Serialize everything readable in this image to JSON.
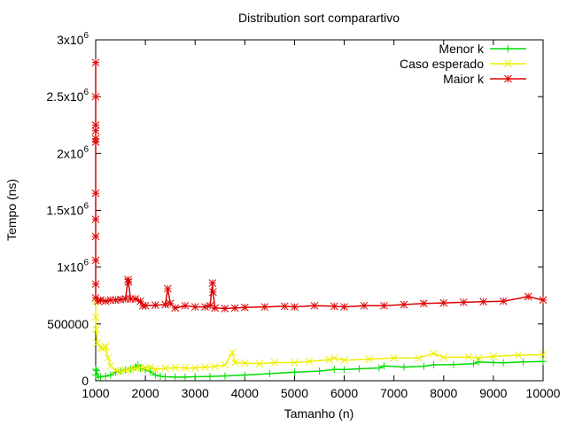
{
  "chart_data": {
    "type": "line",
    "title": "Distribution sort comparartivo",
    "xlabel": "Tamanho (n)",
    "ylabel": "Tempo (ns)",
    "xlim": [
      1000,
      10000
    ],
    "ylim": [
      0,
      3000000
    ],
    "grid": false,
    "legend_position": "top-right",
    "x_ticks": [
      {
        "value": 1000,
        "label": "1000"
      },
      {
        "value": 2000,
        "label": "2000"
      },
      {
        "value": 3000,
        "label": "3000"
      },
      {
        "value": 4000,
        "label": "4000"
      },
      {
        "value": 5000,
        "label": "5000"
      },
      {
        "value": 6000,
        "label": "6000"
      },
      {
        "value": 7000,
        "label": "7000"
      },
      {
        "value": 8000,
        "label": "8000"
      },
      {
        "value": 9000,
        "label": "9000"
      },
      {
        "value": 10000,
        "label": "10000"
      }
    ],
    "y_ticks": [
      {
        "value": 0,
        "base": "0",
        "exp": ""
      },
      {
        "value": 500000,
        "base": "500000",
        "exp": ""
      },
      {
        "value": 1000000,
        "base": "1x10",
        "exp": "6"
      },
      {
        "value": 1500000,
        "base": "1.5x10",
        "exp": "6"
      },
      {
        "value": 2000000,
        "base": "2x10",
        "exp": "6"
      },
      {
        "value": 2500000,
        "base": "2.5x10",
        "exp": "6"
      },
      {
        "value": 3000000,
        "base": "3x10",
        "exp": "6"
      }
    ],
    "series": [
      {
        "name": "Menor k",
        "color": "#00dd00",
        "marker": "plus",
        "points": [
          [
            1000,
            100000
          ],
          [
            1000,
            50000
          ],
          [
            1020,
            90000
          ],
          [
            1050,
            30000
          ],
          [
            1100,
            35000
          ],
          [
            1200,
            40000
          ],
          [
            1300,
            50000
          ],
          [
            1400,
            75000
          ],
          [
            1500,
            85000
          ],
          [
            1600,
            95000
          ],
          [
            1700,
            100000
          ],
          [
            1800,
            120000
          ],
          [
            1850,
            140000
          ],
          [
            1900,
            110000
          ],
          [
            2000,
            95000
          ],
          [
            2100,
            80000
          ],
          [
            2200,
            50000
          ],
          [
            2300,
            40000
          ],
          [
            2400,
            35000
          ],
          [
            2600,
            32000
          ],
          [
            2800,
            32000
          ],
          [
            3000,
            35000
          ],
          [
            3300,
            38000
          ],
          [
            3600,
            42000
          ],
          [
            4000,
            50000
          ],
          [
            4500,
            62000
          ],
          [
            5000,
            75000
          ],
          [
            5500,
            85000
          ],
          [
            5800,
            100000
          ],
          [
            6000,
            98000
          ],
          [
            6300,
            105000
          ],
          [
            6700,
            112000
          ],
          [
            6800,
            130000
          ],
          [
            7200,
            120000
          ],
          [
            7600,
            128000
          ],
          [
            7800,
            140000
          ],
          [
            8200,
            142000
          ],
          [
            8600,
            150000
          ],
          [
            8700,
            165000
          ],
          [
            9000,
            160000
          ],
          [
            9200,
            158000
          ],
          [
            9600,
            165000
          ],
          [
            10000,
            170000
          ]
        ]
      },
      {
        "name": "Caso esperado",
        "color": "#eeee00",
        "marker": "x",
        "points": [
          [
            1000,
            700000
          ],
          [
            1000,
            560000
          ],
          [
            1010,
            450000
          ],
          [
            1030,
            330000
          ],
          [
            1100,
            290000
          ],
          [
            1150,
            285000
          ],
          [
            1200,
            300000
          ],
          [
            1250,
            200000
          ],
          [
            1300,
            130000
          ],
          [
            1400,
            90000
          ],
          [
            1500,
            80000
          ],
          [
            1600,
            90000
          ],
          [
            1700,
            100000
          ],
          [
            1800,
            110000
          ],
          [
            1900,
            115000
          ],
          [
            2000,
            110000
          ],
          [
            2100,
            120000
          ],
          [
            2200,
            100000
          ],
          [
            2400,
            110000
          ],
          [
            2600,
            115000
          ],
          [
            2800,
            112000
          ],
          [
            3000,
            112000
          ],
          [
            3200,
            120000
          ],
          [
            3400,
            125000
          ],
          [
            3600,
            140000
          ],
          [
            3750,
            250000
          ],
          [
            3800,
            160000
          ],
          [
            4000,
            155000
          ],
          [
            4300,
            150000
          ],
          [
            4600,
            160000
          ],
          [
            5000,
            160000
          ],
          [
            5300,
            170000
          ],
          [
            5700,
            185000
          ],
          [
            5800,
            200000
          ],
          [
            6000,
            180000
          ],
          [
            6500,
            190000
          ],
          [
            7000,
            200000
          ],
          [
            7500,
            200000
          ],
          [
            7800,
            240000
          ],
          [
            8000,
            205000
          ],
          [
            8500,
            210000
          ],
          [
            8700,
            200000
          ],
          [
            9000,
            215000
          ],
          [
            9500,
            225000
          ],
          [
            10000,
            230000
          ]
        ]
      },
      {
        "name": "Maior k",
        "color": "#dd0000",
        "marker": "star",
        "points": [
          [
            1000,
            2800000
          ],
          [
            1000,
            2500000
          ],
          [
            1000,
            2250000
          ],
          [
            1000,
            2200000
          ],
          [
            1000,
            2130000
          ],
          [
            1000,
            2100000
          ],
          [
            1000,
            1650000
          ],
          [
            1000,
            1420000
          ],
          [
            1000,
            1270000
          ],
          [
            1000,
            1060000
          ],
          [
            1000,
            850000
          ],
          [
            1000,
            730000
          ],
          [
            1050,
            700000
          ],
          [
            1100,
            710000
          ],
          [
            1200,
            700000
          ],
          [
            1300,
            710000
          ],
          [
            1400,
            710000
          ],
          [
            1500,
            715000
          ],
          [
            1600,
            720000
          ],
          [
            1650,
            890000
          ],
          [
            1660,
            870000
          ],
          [
            1700,
            720000
          ],
          [
            1800,
            720000
          ],
          [
            1900,
            700000
          ],
          [
            1950,
            660000
          ],
          [
            2000,
            660000
          ],
          [
            2200,
            665000
          ],
          [
            2400,
            670000
          ],
          [
            2450,
            810000
          ],
          [
            2500,
            680000
          ],
          [
            2600,
            640000
          ],
          [
            2800,
            660000
          ],
          [
            3000,
            650000
          ],
          [
            3200,
            650000
          ],
          [
            3300,
            660000
          ],
          [
            3350,
            860000
          ],
          [
            3360,
            780000
          ],
          [
            3400,
            640000
          ],
          [
            3600,
            635000
          ],
          [
            3800,
            640000
          ],
          [
            4000,
            645000
          ],
          [
            4400,
            650000
          ],
          [
            4800,
            655000
          ],
          [
            5000,
            650000
          ],
          [
            5400,
            660000
          ],
          [
            5800,
            655000
          ],
          [
            6000,
            650000
          ],
          [
            6400,
            660000
          ],
          [
            6800,
            660000
          ],
          [
            7200,
            670000
          ],
          [
            7600,
            680000
          ],
          [
            8000,
            685000
          ],
          [
            8400,
            690000
          ],
          [
            8800,
            695000
          ],
          [
            9200,
            700000
          ],
          [
            9700,
            740000
          ],
          [
            10000,
            710000
          ]
        ]
      }
    ]
  }
}
